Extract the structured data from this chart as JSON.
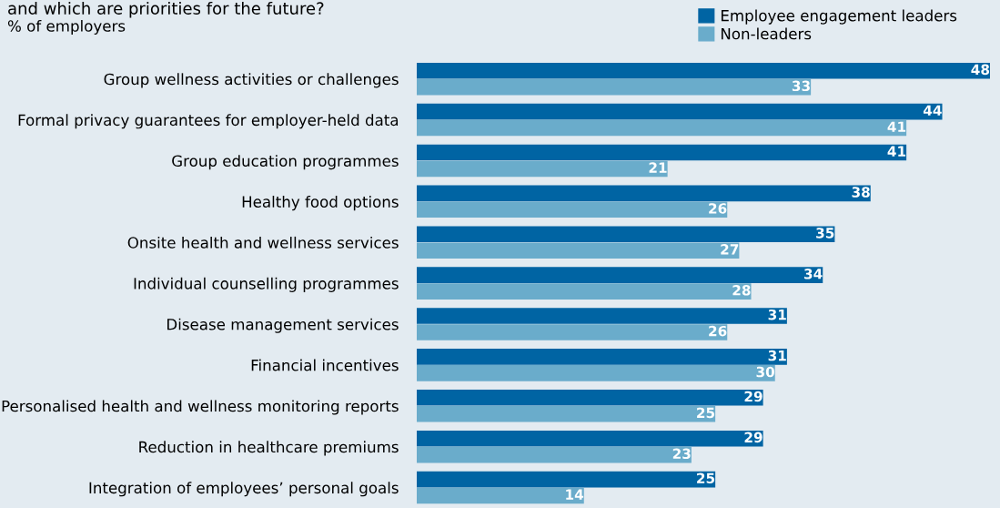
{
  "chart_data": {
    "type": "bar",
    "orientation": "horizontal",
    "title": "and which are priorities for the future?",
    "subtitle": "% of employers",
    "categories": [
      "Group wellness activities or challenges",
      "Formal privacy guarantees for employer-held data",
      "Group education programmes",
      "Healthy food options",
      "Onsite health and wellness services",
      "Individual counselling programmes",
      "Disease management services",
      "Financial incentives",
      "Personalised health and wellness monitoring reports",
      "Reduction in healthcare premiums",
      "Integration of employees’ personal goals"
    ],
    "series": [
      {
        "name": "Employee engagement leaders",
        "color": "#0064a3",
        "values": [
          48,
          44,
          41,
          38,
          35,
          34,
          31,
          31,
          29,
          29,
          25
        ]
      },
      {
        "name": "Non-leaders",
        "color": "#6aaccb",
        "values": [
          33,
          41,
          21,
          26,
          27,
          28,
          26,
          30,
          25,
          23,
          14
        ]
      }
    ],
    "xlim": [
      0,
      48
    ],
    "data_labels": true,
    "legend": "top right",
    "grid": false
  }
}
